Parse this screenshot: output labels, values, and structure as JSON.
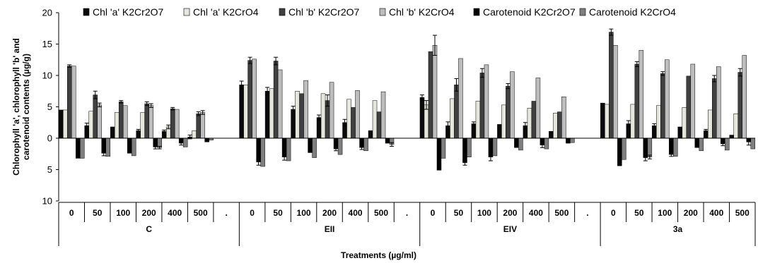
{
  "chart_data": {
    "type": "bar",
    "title": "",
    "ylabel_lines": [
      "Chlorophyll 'a', chlorophyll 'b' and",
      "carotenoid contents (µg/g)"
    ],
    "xlabel": "Treatments (µg/ml)",
    "ylim": [
      -10,
      20
    ],
    "yticks": [
      {
        "value": 20,
        "label": "20"
      },
      {
        "value": 15,
        "label": "15"
      },
      {
        "value": 10,
        "label": "10"
      },
      {
        "value": 5,
        "label": "5"
      },
      {
        "value": 0,
        "label": "0"
      },
      {
        "value": -5,
        "label": "5"
      },
      {
        "value": -10,
        "label": "10"
      }
    ],
    "categories": [
      "0",
      "50",
      "100",
      "200",
      "400",
      "500",
      ".",
      "0",
      "50",
      "100",
      "200",
      "400",
      "500",
      ".",
      "0",
      "50",
      "100",
      "200",
      "400",
      "500",
      ".",
      "0",
      "50",
      "100",
      "200",
      "400",
      "500"
    ],
    "groups": [
      {
        "label": "C",
        "start": 0,
        "end": 6
      },
      {
        "label": "EII",
        "start": 7,
        "end": 13
      },
      {
        "label": "EIV",
        "start": 14,
        "end": 20
      },
      {
        "label": "3a",
        "start": 21,
        "end": 26
      }
    ],
    "legend_position": "top",
    "series": [
      {
        "name": "Chl 'a' K2Cr2O7",
        "color": "#0a0a0a",
        "values": [
          4.5,
          2.0,
          1.8,
          1.2,
          1.1,
          0.2,
          null,
          8.5,
          7.5,
          4.6,
          3.3,
          2.5,
          1.2,
          null,
          6.5,
          2.0,
          2.3,
          2.2,
          2.0,
          1.1,
          null,
          5.6,
          2.3,
          2.0,
          1.8,
          1.2,
          0.5
        ],
        "errors": [
          0,
          0.4,
          0,
          0.2,
          0.2,
          0.3,
          null,
          0.6,
          0.6,
          0.5,
          0.4,
          0.5,
          0,
          null,
          0.4,
          0.6,
          0.3,
          0,
          0.5,
          0,
          null,
          0,
          0.5,
          0.3,
          0,
          0.2,
          0
        ]
      },
      {
        "name": "Chl 'a' K2CrO4",
        "color": "#e6e6dc",
        "values": [
          4.5,
          4.3,
          4.1,
          4.1,
          1.8,
          1.2,
          null,
          8.5,
          7.9,
          7.5,
          7.1,
          6.2,
          6.0,
          null,
          5.3,
          6.3,
          5.9,
          5.3,
          4.8,
          4.0,
          null,
          5.4,
          5.4,
          5.2,
          4.9,
          4.5,
          3.9
        ],
        "errors": [
          0,
          0,
          0,
          0,
          0.3,
          0,
          null,
          0,
          0,
          0,
          0,
          0,
          0,
          null,
          0.7,
          0,
          0,
          0,
          0,
          0,
          null,
          0,
          0,
          0,
          0,
          0,
          0
        ]
      },
      {
        "name": "Chl 'b' K2Cr2O7",
        "color": "#404040",
        "values": [
          11.5,
          6.9,
          5.8,
          5.5,
          4.7,
          3.9,
          null,
          12.4,
          12.3,
          7.1,
          6.0,
          4.9,
          4.2,
          null,
          13.8,
          8.5,
          10.4,
          8.3,
          5.9,
          4.2,
          null,
          16.9,
          11.8,
          10.3,
          9.9,
          9.5,
          10.5
        ],
        "errors": [
          0.2,
          0.6,
          0.2,
          0.3,
          0.2,
          0.3,
          null,
          0.5,
          0.6,
          0,
          0.9,
          0,
          0,
          null,
          0,
          1.0,
          0.7,
          0.4,
          0,
          0,
          null,
          0.5,
          0.4,
          0.3,
          0,
          0.5,
          0.6
        ]
      },
      {
        "name": "Chl 'b' K2CrO4",
        "color": "#bdbdbd",
        "values": [
          11.5,
          5.3,
          5.2,
          5.2,
          4.6,
          4.1,
          null,
          12.6,
          10.9,
          9.2,
          8.9,
          7.6,
          7.4,
          null,
          14.8,
          12.7,
          11.7,
          10.6,
          9.6,
          6.6,
          null,
          14.8,
          14.0,
          12.5,
          11.8,
          11.4,
          13.2
        ],
        "errors": [
          0,
          0.3,
          0,
          0.3,
          0,
          0.3,
          null,
          0,
          0,
          0,
          0,
          0,
          0,
          null,
          1.6,
          0,
          0,
          0,
          0,
          0,
          null,
          0,
          0,
          0,
          0,
          0,
          0
        ]
      },
      {
        "name": "Carotenoid K2Cr2O7",
        "color": "#000000",
        "values": [
          -3.2,
          -2.4,
          -2.4,
          -1.4,
          -0.8,
          -0.6,
          null,
          -3.8,
          -3.0,
          -2.3,
          -1.7,
          -1.5,
          -0.8,
          null,
          -5.1,
          -3.9,
          -3.0,
          -1.5,
          -1.1,
          -0.8,
          null,
          -4.4,
          -3.1,
          -2.6,
          -1.5,
          -0.9,
          -0.6
        ],
        "errors": [
          0,
          0.4,
          0,
          0.3,
          0.3,
          0,
          null,
          0.5,
          0.5,
          0,
          0.3,
          0.3,
          0,
          null,
          0,
          0.4,
          0.6,
          0,
          0.4,
          0,
          null,
          0,
          0.5,
          0.3,
          0,
          0.3,
          0.5
        ]
      },
      {
        "name": "Carotenoid K2CrO4",
        "color": "#7f7f7f",
        "values": [
          -3.2,
          -2.9,
          -2.8,
          -1.5,
          -1.4,
          -0.3,
          null,
          -4.5,
          -3.6,
          -3.1,
          -2.6,
          -2.0,
          -1.0,
          null,
          -3.2,
          -3.0,
          -2.8,
          -1.9,
          -1.7,
          -0.7,
          null,
          -3.4,
          -3.0,
          -2.9,
          -2.0,
          -1.9,
          -1.7
        ],
        "errors": [
          0,
          0,
          0,
          0.2,
          0,
          0,
          null,
          0,
          0,
          0,
          0,
          0,
          0.3,
          null,
          0,
          0,
          0,
          0,
          0,
          0,
          null,
          0,
          0.3,
          0,
          0,
          0,
          0
        ]
      }
    ]
  }
}
